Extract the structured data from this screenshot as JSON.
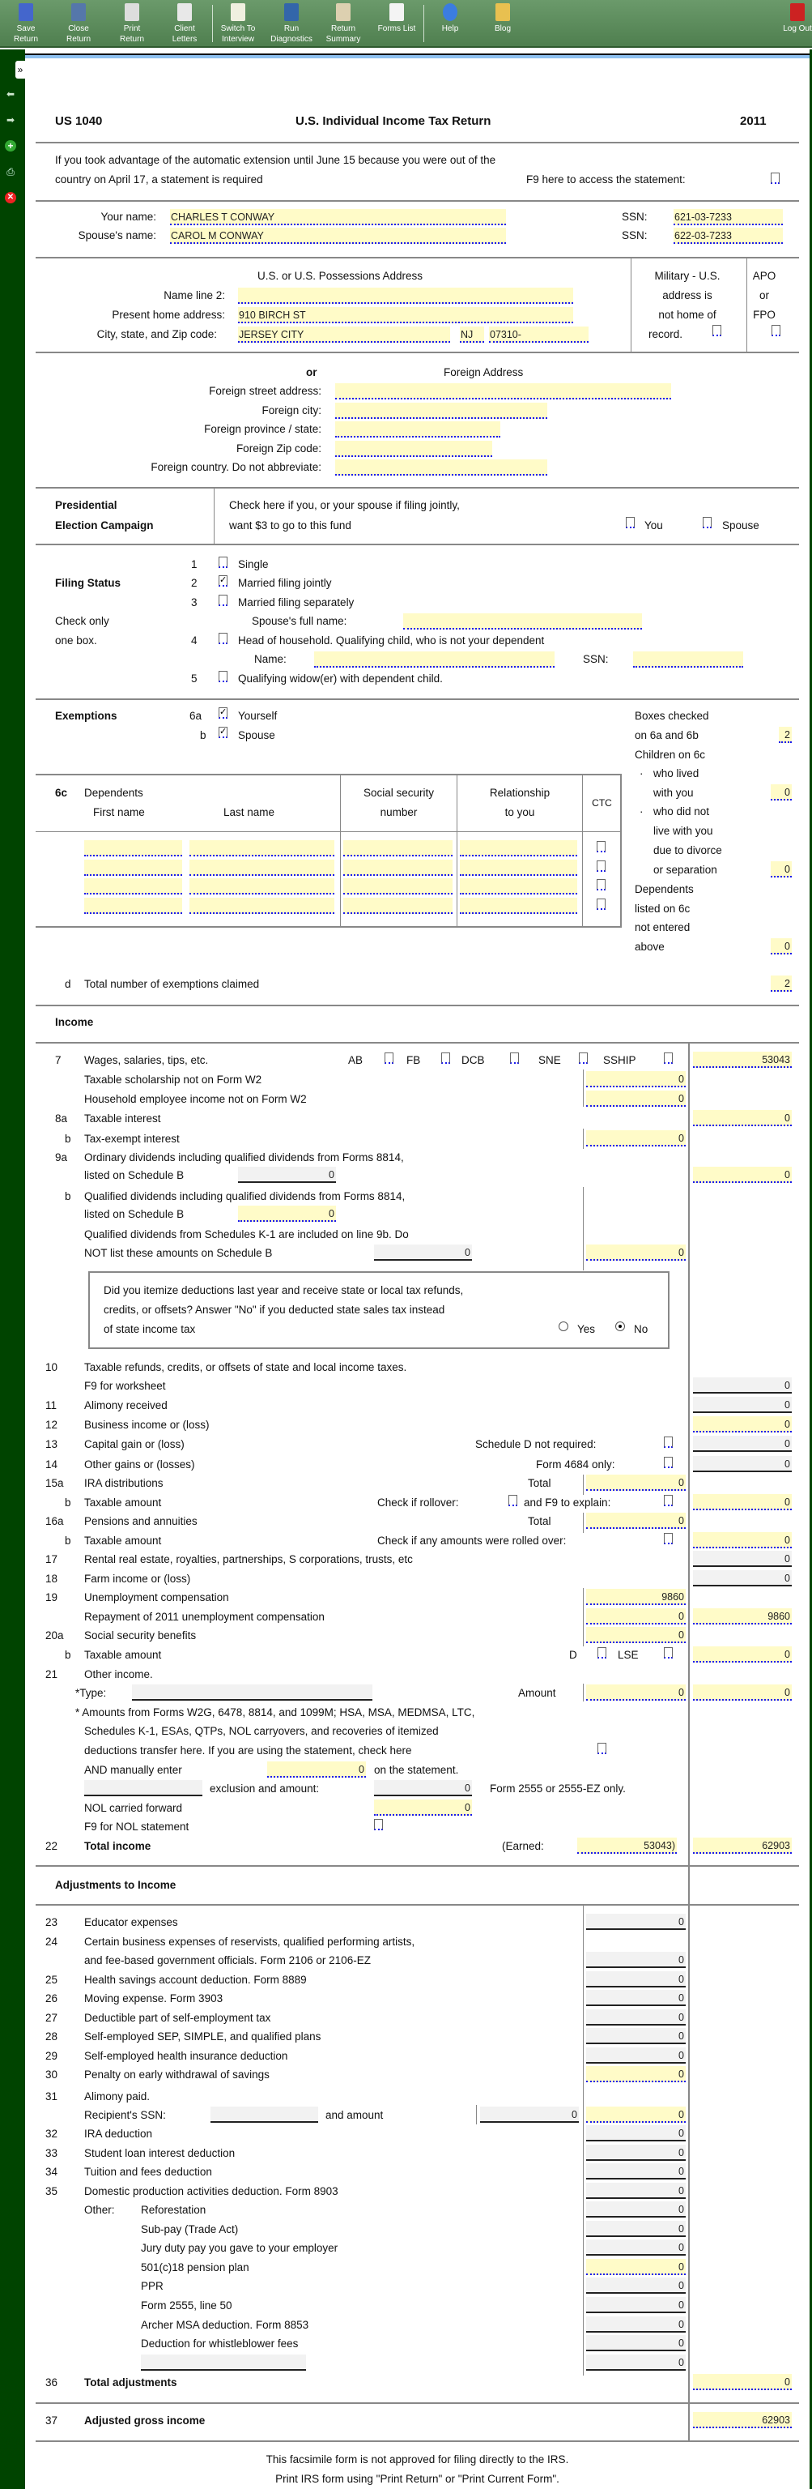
{
  "toolbar": {
    "buttons": [
      {
        "l1": "Save",
        "l2": "Return",
        "icon": "save-icon"
      },
      {
        "l1": "Close",
        "l2": "Return",
        "icon": "close-return-icon"
      },
      {
        "l1": "Print",
        "l2": "Return",
        "icon": "printer-icon"
      },
      {
        "l1": "Client",
        "l2": "Letters",
        "icon": "envelope-icon"
      },
      {
        "l1": "Switch To",
        "l2": "Interview",
        "icon": "switch-icon"
      },
      {
        "l1": "Run",
        "l2": "Diagnostics",
        "icon": "diagnostics-icon"
      },
      {
        "l1": "Return",
        "l2": "Summary",
        "icon": "clipboard-icon"
      },
      {
        "l1": "Forms List",
        "l2": "",
        "icon": "list-icon"
      },
      {
        "l1": "Help",
        "l2": "",
        "icon": "help-icon"
      },
      {
        "l1": "Blog",
        "l2": "",
        "icon": "blog-icon"
      },
      {
        "l1": "Log Out",
        "l2": "",
        "icon": "logout-icon"
      }
    ]
  },
  "sidebar": {
    "expand": "»"
  },
  "header": {
    "form": "US 1040",
    "title": "U.S. Individual Income Tax Return",
    "year": "2011"
  },
  "extension": {
    "line1": "If you took advantage of the automatic extension until June 15 because you were out of the",
    "line2": "country on April 17,  a statement is required",
    "f9": "F9 here to access the statement:"
  },
  "names": {
    "your_label": "Your name:",
    "your_value": "CHARLES T CONWAY",
    "spouse_label": "Spouse's name:",
    "spouse_value": "CAROL M CONWAY",
    "ssn_label": "SSN:",
    "your_ssn": "621-03-7233",
    "spouse_ssn": "622-03-7233"
  },
  "address": {
    "title": "U.S. or U.S. Possessions Address",
    "name2_label": "Name line 2:",
    "name2": "",
    "home_label": "Present home address:",
    "home": "910 BIRCH ST",
    "city_label": "City,  state,  and Zip code:",
    "city": "JERSEY CITY",
    "state": "NJ",
    "zip": "07310-",
    "military": [
      "Military - U.S.",
      "address is",
      "not home of",
      "record."
    ],
    "apo": [
      "APO",
      "or",
      "FPO"
    ]
  },
  "foreign": {
    "or": "or",
    "title": "Foreign Address",
    "street": "Foreign street address:",
    "city": "Foreign city:",
    "province": "Foreign province / state:",
    "zip": "Foreign Zip code:",
    "country": "Foreign country.  Do not abbreviate:"
  },
  "presidential": {
    "title1": "Presidential",
    "title2": "Election Campaign",
    "text1": "Check here if you,  or your spouse if filing jointly,",
    "text2": "want $3 to go to this fund",
    "you": "You",
    "spouse": "Spouse"
  },
  "filing": {
    "title": "Filing Status",
    "note1": "Check only",
    "note2": "one box.",
    "options": [
      {
        "n": "1",
        "label": "Single",
        "checked": false
      },
      {
        "n": "2",
        "label": "Married filing jointly",
        "checked": true
      },
      {
        "n": "3",
        "label": "Married filing separately",
        "checked": false
      },
      {
        "n": "4",
        "label": "Head of household.  Qualifying child,  who is not your dependent",
        "checked": false
      },
      {
        "n": "5",
        "label": "Qualifying widow(er)  with dependent child.",
        "checked": false
      }
    ],
    "spouse_full_name": "Spouse's full name:",
    "name": "Name:",
    "ssn": "SSN:"
  },
  "exemptions": {
    "title": "Exemptions",
    "a": "6a",
    "yourself": "Yourself",
    "b": "b",
    "spouse": "Spouse",
    "side": [
      "Boxes checked",
      "on 6a and 6b",
      "Children on 6c",
      "who lived",
      "with you",
      "who did not",
      "live with you",
      "due to divorce",
      "or separation",
      "Dependents",
      "listed on 6c",
      "not entered",
      "above"
    ],
    "boxes_checked": "2",
    "lived_with": "0",
    "not_lived": "0",
    "not_entered": "0",
    "dep_header": {
      "c": "6c",
      "dependents": "Dependents",
      "first": "First name",
      "last": "Last name",
      "ssn1": "Social security",
      "ssn2": "number",
      "rel1": "Relationship",
      "rel2": "to you",
      "ctc": "CTC"
    },
    "d": "d",
    "total_label": "Total number of exemptions claimed",
    "total": "2"
  },
  "income": {
    "title": "Income",
    "l7": {
      "n": "7",
      "label": "Wages, salaries, tips, etc.",
      "checks": [
        "AB",
        "FB",
        "DCB",
        "SNE",
        "SSHIP"
      ],
      "value": "53043"
    },
    "scholarship": {
      "label": "Taxable scholarship not on Form W2",
      "value": "0"
    },
    "household": {
      "label": "Household employee income not on Form W2",
      "value": "0"
    },
    "l8a": {
      "n": "8a",
      "label": "Taxable interest",
      "value": "0"
    },
    "l8b": {
      "n": "b",
      "label": "Tax-exempt interest",
      "value": "0"
    },
    "l9a": {
      "n": "9a",
      "label1": "Ordinary dividends including qualified dividends from Forms 8814,",
      "label2": "listed on Schedule B",
      "sub": "0",
      "value": "0"
    },
    "l9b": {
      "n": "b",
      "label1": "Qualified dividends including qualified dividends from Forms 8814,",
      "label2": "listed on Schedule B",
      "sub": "0",
      "k1a": "Qualified dividends from Schedules K-1 are included on line 9b. Do",
      "k1b": "NOT list these amounts on Schedule B",
      "k1": "0",
      "value": "0"
    },
    "itemize": {
      "q1": "Did you itemize deductions last year and receive state or local tax refunds,",
      "q2": "credits,  or offsets?  Answer  \"No\"  if you deducted state sales tax instead",
      "q3": "of state income tax",
      "yes": "Yes",
      "no": "No",
      "selected": "No"
    },
    "l10": {
      "n": "10",
      "label1": "Taxable refunds,  credits,  or offsets of state and local income taxes.",
      "label2": "F9  for worksheet",
      "value": "0"
    },
    "l11": {
      "n": "11",
      "label": "Alimony received",
      "value": "0"
    },
    "l12": {
      "n": "12",
      "label": "Business income or  (loss)",
      "value": "0"
    },
    "l13": {
      "n": "13",
      "label": "Capital gain or  (loss)",
      "note": "Schedule D not required:",
      "value": "0"
    },
    "l14": {
      "n": "14",
      "label": "Other gains or  (losses)",
      "note": "Form 4684 only:",
      "value": "0"
    },
    "l15a": {
      "n": "15a",
      "label": "IRA distributions",
      "note": "Total",
      "sub": "0"
    },
    "l15b": {
      "n": "b",
      "label": "Taxable amount",
      "note1": "Check if rollover:",
      "note2": "and F9 to explain:",
      "value": "0"
    },
    "l16a": {
      "n": "16a",
      "label": "Pensions and annuities",
      "note": "Total",
      "sub": "0"
    },
    "l16b": {
      "n": "b",
      "label": "Taxable amount",
      "note": "Check if any amounts were rolled over:",
      "value": "0"
    },
    "l17": {
      "n": "17",
      "label": "Rental real estate,  royalties,  partnerships,  S corporations,  trusts,  etc",
      "value": "0"
    },
    "l18": {
      "n": "18",
      "label": "Farm income or  (loss)",
      "value": "0"
    },
    "l19": {
      "n": "19",
      "label": "Unemployment compensation",
      "sub": "9860",
      "repay_label": "Repayment of 2011 unemployment compensation",
      "repay": "0",
      "value": "9860"
    },
    "l20a": {
      "n": "20a",
      "label": "Social security benefits",
      "sub": "0"
    },
    "l20b": {
      "n": "b",
      "label": "Taxable amount",
      "d": "D",
      "lse": "LSE",
      "value": "0"
    },
    "l21": {
      "n": "21",
      "label": "Other income.",
      "type": "*Type:",
      "amount": "Amount",
      "sub": "0",
      "value": "0",
      "note1": "* Amounts from Forms W2G,  6478,  8814,  and 1099M;  HSA,  MSA,  MEDMSA,  LTC,",
      "note2": "Schedules K-1,  ESAs,  QTPs,  NOL carryovers,  and recoveries of itemized",
      "note3": "deductions transfer here.  If you are using the statement,  check here",
      "manual": "AND manually enter",
      "manual_value": "0",
      "manual_after": "on the statement.",
      "exclusion": "exclusion and amount:",
      "exclusion_value": "0",
      "form2555": "Form 2555 or 2555-EZ only.",
      "nol": "NOL carried forward",
      "nol_value": "0",
      "nol_stmt": "F9 for NOL statement"
    },
    "l22": {
      "n": "22",
      "label": "Total income",
      "earned": "(Earned:",
      "earned_value": "53043)",
      "value": "62903"
    }
  },
  "adjustments": {
    "title": "Adjustments to Income",
    "lines": [
      {
        "n": "23",
        "label": "Educator expenses",
        "value": "0"
      },
      {
        "n": "24",
        "label": "Certain business expenses of reservists,  qualified performing artists,",
        "label2": "and fee-based government officials.  Form 2106 or 2106-EZ",
        "value": "0"
      },
      {
        "n": "25",
        "label": "Health savings account deduction.  Form 8889",
        "value": "0"
      },
      {
        "n": "26",
        "label": "Moving expense.  Form 3903",
        "value": "0"
      },
      {
        "n": "27",
        "label": "Deductible part of self-employment tax",
        "value": "0"
      },
      {
        "n": "28",
        "label": "Self-employed SEP,  SIMPLE,  and qualified plans",
        "value": "0"
      },
      {
        "n": "29",
        "label": "Self-employed health insurance deduction",
        "value": "0"
      },
      {
        "n": "30",
        "label": "Penalty on early withdrawal of savings",
        "value": "0"
      }
    ],
    "l31": {
      "n": "31",
      "label": "Alimony paid.",
      "ssn": "Recipient's SSN:",
      "and_amount": "and amount",
      "amount": "0",
      "value": "0"
    },
    "lines2": [
      {
        "n": "32",
        "label": "IRA deduction",
        "value": "0"
      },
      {
        "n": "33",
        "label": "Student loan interest deduction",
        "value": "0"
      },
      {
        "n": "34",
        "label": "Tuition and fees deduction",
        "value": "0"
      },
      {
        "n": "35",
        "label": "Domestic production activities deduction.  Form 8903",
        "value": "0"
      }
    ],
    "other_label": "Other:",
    "other": [
      {
        "label": "Reforestation",
        "value": "0"
      },
      {
        "label": "Sub-pay  (Trade Act)",
        "value": "0"
      },
      {
        "label": "Jury duty pay you gave to your employer",
        "value": "0"
      },
      {
        "label": "501(c)18 pension plan",
        "value": "0"
      },
      {
        "label": "PPR",
        "value": "0"
      },
      {
        "label": "Form 2555,  line 50",
        "value": "0"
      },
      {
        "label": "Archer MSA deduction.  Form 8853",
        "value": "0"
      },
      {
        "label": "Deduction for whistleblower fees",
        "value": "0"
      },
      {
        "label": "",
        "value": "0"
      }
    ],
    "l36": {
      "n": "36",
      "label": "Total adjustments",
      "value": "0"
    },
    "l37": {
      "n": "37",
      "label": "Adjusted gross income",
      "value": "62903"
    }
  },
  "footer": {
    "line1": "This facsimile form is not approved for filing directly to the IRS.",
    "line2": "Print IRS form using \"Print Return\" or \"Print Current Form\"."
  },
  "colors": {
    "toolbar": "#5d8a5d",
    "sidebar": "#004400",
    "input_bg": "#fffbc8",
    "calc_bg": "#f2f2f2",
    "accent": "#8fc1f0"
  }
}
